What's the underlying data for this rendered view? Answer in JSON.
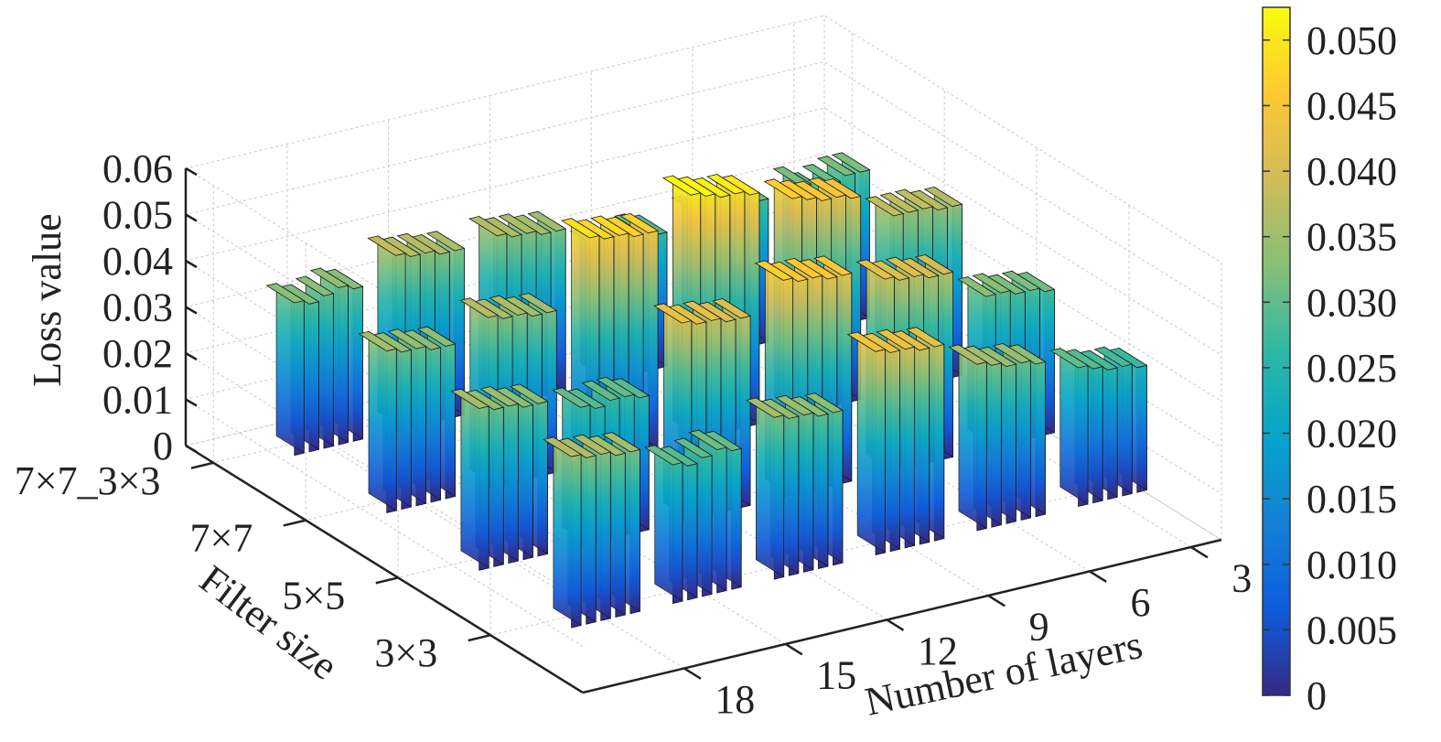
{
  "chart_data": {
    "type": "bar3d",
    "zlabel": "Loss value",
    "xlabel": "Number of layers",
    "ylabel": "Filter size",
    "layers": [
      "3",
      "6",
      "9",
      "12",
      "15",
      "18"
    ],
    "filters": [
      "3×3",
      "5×5",
      "7×7",
      "7×7_3×3"
    ],
    "z_ticks": [
      "0",
      "0.01",
      "0.02",
      "0.03",
      "0.04",
      "0.05",
      "0.06"
    ],
    "zlim": [
      0,
      0.06
    ],
    "colorbar": {
      "ticks": [
        "0",
        "0.005",
        "0.010",
        "0.015",
        "0.020",
        "0.025",
        "0.030",
        "0.035",
        "0.040",
        "0.045",
        "0.050"
      ],
      "range": [
        0,
        0.0525
      ],
      "colormap": [
        "#352a87",
        "#0f5cdd",
        "#1481d6",
        "#06a4ca",
        "#2eb7a4",
        "#87bf77",
        "#d1bb59",
        "#fec832",
        "#f9fb0e"
      ]
    },
    "groups": [
      {
        "layers": "3",
        "filter": "3×3",
        "values": [
          0.03,
          0.029,
          0.028,
          0.028,
          0.027
        ]
      },
      {
        "layers": "3",
        "filter": "5×5",
        "values": [
          0.033,
          0.033,
          0.032,
          0.032,
          0.031
        ]
      },
      {
        "layers": "3",
        "filter": "7×7",
        "values": [
          0.038,
          0.038,
          0.038,
          0.037,
          0.037
        ]
      },
      {
        "layers": "3",
        "filter": "7×7_3×3",
        "values": [
          0.032,
          0.03,
          0.031,
          0.032,
          0.032
        ]
      },
      {
        "layers": "6",
        "filter": "3×3",
        "values": [
          0.036,
          0.035,
          0.034,
          0.034,
          0.033
        ]
      },
      {
        "layers": "6",
        "filter": "5×5",
        "values": [
          0.042,
          0.041,
          0.041,
          0.04,
          0.04
        ]
      },
      {
        "layers": "6",
        "filter": "7×7",
        "values": [
          0.047,
          0.046,
          0.045,
          0.045,
          0.044
        ]
      },
      {
        "layers": "6",
        "filter": "7×7_3×3",
        "values": [
          0.031,
          0.03,
          0.031,
          0.032,
          0.031
        ]
      },
      {
        "layers": "9",
        "filter": "3×3",
        "values": [
          0.044,
          0.043,
          0.043,
          0.042,
          0.042
        ]
      },
      {
        "layers": "9",
        "filter": "5×5",
        "values": [
          0.047,
          0.046,
          0.046,
          0.045,
          0.045
        ]
      },
      {
        "layers": "9",
        "filter": "7×7",
        "values": [
          0.053,
          0.052,
          0.051,
          0.051,
          0.05
        ]
      },
      {
        "layers": "9",
        "filter": "7×7_3×3",
        "values": [
          0.029,
          0.028,
          0.029,
          0.03,
          0.029
        ]
      },
      {
        "layers": "12",
        "filter": "3×3",
        "values": [
          0.035,
          0.034,
          0.034,
          0.033,
          0.033
        ]
      },
      {
        "layers": "12",
        "filter": "5×5",
        "values": [
          0.043,
          0.042,
          0.042,
          0.041,
          0.041
        ]
      },
      {
        "layers": "12",
        "filter": "7×7",
        "values": [
          0.049,
          0.048,
          0.048,
          0.047,
          0.047
        ]
      },
      {
        "layers": "12",
        "filter": "7×7_3×3",
        "values": [
          0.037,
          0.036,
          0.036,
          0.035,
          0.035
        ]
      },
      {
        "layers": "15",
        "filter": "3×3",
        "values": [
          0.03,
          0.029,
          0.03,
          0.031,
          0.03
        ]
      },
      {
        "layers": "15",
        "filter": "5×5",
        "values": [
          0.03,
          0.029,
          0.03,
          0.03,
          0.029
        ]
      },
      {
        "layers": "15",
        "filter": "7×7",
        "values": [
          0.037,
          0.036,
          0.036,
          0.035,
          0.035
        ]
      },
      {
        "layers": "15",
        "filter": "7×7_3×3",
        "values": [
          0.038,
          0.037,
          0.037,
          0.036,
          0.036
        ]
      },
      {
        "layers": "18",
        "filter": "3×3",
        "values": [
          0.037,
          0.036,
          0.036,
          0.035,
          0.035
        ]
      },
      {
        "layers": "18",
        "filter": "5×5",
        "values": [
          0.035,
          0.034,
          0.034,
          0.033,
          0.033
        ]
      },
      {
        "layers": "18",
        "filter": "7×7",
        "values": [
          0.035,
          0.034,
          0.034,
          0.033,
          0.033
        ]
      },
      {
        "layers": "18",
        "filter": "7×7_3×3",
        "values": [
          0.033,
          0.032,
          0.033,
          0.034,
          0.033
        ]
      }
    ]
  }
}
